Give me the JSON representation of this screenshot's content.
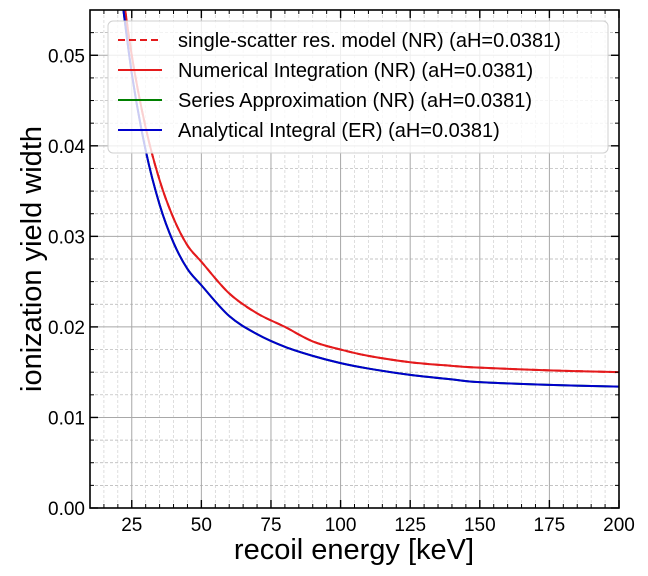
{
  "chart_data": {
    "type": "line",
    "title": "",
    "xlabel": "recoil energy [keV]",
    "ylabel": "ionization yield width",
    "xlim": [
      10,
      200
    ],
    "ylim": [
      0,
      0.055
    ],
    "x_ticks": [
      25,
      50,
      75,
      100,
      125,
      150,
      175,
      200
    ],
    "x_tick_labels": [
      "25",
      "50",
      "75",
      "100",
      "125",
      "150",
      "175",
      "200"
    ],
    "y_ticks": [
      0,
      0.01,
      0.02,
      0.03,
      0.04,
      0.05
    ],
    "y_tick_labels": [
      "0.00",
      "0.01",
      "0.02",
      "0.03",
      "0.04",
      "0.05"
    ],
    "grid": "major and minor",
    "legend_position": "top-right",
    "x": [
      20,
      25,
      30,
      35,
      40,
      45,
      50,
      60,
      70,
      80,
      90,
      100,
      110,
      125,
      140,
      150,
      175,
      200
    ],
    "series": [
      {
        "name": "single-scatter res. model (NR) (aH=0.0381)",
        "color": "#e41a1c",
        "style": "dashed",
        "values": [
          0.061,
          0.05,
          0.042,
          0.0362,
          0.032,
          0.029,
          0.0272,
          0.0237,
          0.0215,
          0.02,
          0.0184,
          0.0175,
          0.0168,
          0.0161,
          0.0157,
          0.0155,
          0.0152,
          0.015
        ]
      },
      {
        "name": "Numerical Integration (NR) (aH=0.0381)",
        "color": "#e41a1c",
        "style": "solid",
        "values": [
          0.061,
          0.05,
          0.042,
          0.0362,
          0.032,
          0.029,
          0.0272,
          0.0237,
          0.0215,
          0.02,
          0.0184,
          0.0175,
          0.0168,
          0.0161,
          0.0157,
          0.0155,
          0.0152,
          0.015
        ]
      },
      {
        "name": "Series Approximation (NR) (aH=0.0381)",
        "color": "#008000",
        "style": "solid",
        "values": [
          0.06,
          0.048,
          0.0395,
          0.0335,
          0.0293,
          0.0264,
          0.0246,
          0.0212,
          0.0192,
          0.0178,
          0.0168,
          0.016,
          0.0154,
          0.0147,
          0.0142,
          0.0139,
          0.0136,
          0.0134
        ]
      },
      {
        "name": "Analytical Integral (ER) (aH=0.0381)",
        "color": "#0000cc",
        "style": "solid",
        "values": [
          0.06,
          0.048,
          0.0395,
          0.0335,
          0.0293,
          0.0264,
          0.0246,
          0.0212,
          0.0192,
          0.0178,
          0.0168,
          0.016,
          0.0154,
          0.0147,
          0.0142,
          0.0139,
          0.0136,
          0.0134
        ]
      }
    ]
  }
}
